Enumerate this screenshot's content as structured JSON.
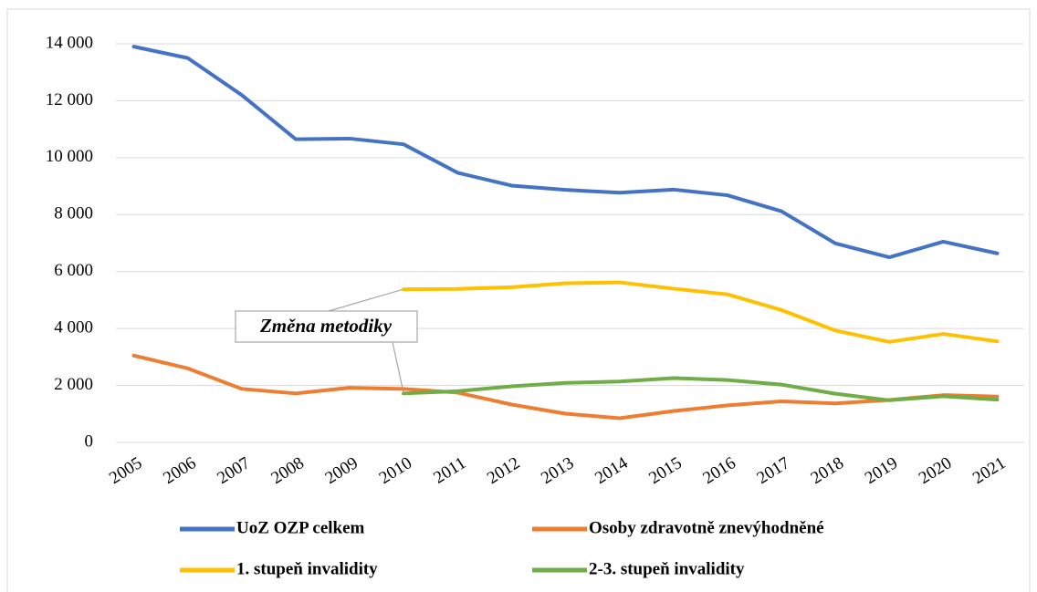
{
  "chart_data": {
    "type": "line",
    "categories": [
      "2005",
      "2006",
      "2007",
      "2008",
      "2009",
      "2010",
      "2011",
      "2012",
      "2013",
      "2014",
      "2015",
      "2016",
      "2017",
      "2018",
      "2019",
      "2020",
      "2021"
    ],
    "series": [
      {
        "name": "UoZ OZP celkem",
        "color": "#4472c4",
        "values": [
          13900,
          13500,
          12200,
          10650,
          10670,
          10470,
          9470,
          9020,
          8870,
          8770,
          8880,
          8680,
          8120,
          6990,
          6500,
          7050,
          6640
        ]
      },
      {
        "name": "Osoby zdravotně znevýhodněné",
        "color": "#ed7d31",
        "values": [
          3050,
          2600,
          1880,
          1720,
          1920,
          1880,
          1750,
          1330,
          1010,
          850,
          1100,
          1300,
          1440,
          1370,
          1490,
          1660,
          1610
        ]
      },
      {
        "name": "1. stupeň invalidity",
        "color": "#ffc000",
        "values": [
          null,
          null,
          null,
          null,
          null,
          5380,
          5390,
          5450,
          5590,
          5620,
          5400,
          5200,
          4650,
          3930,
          3530,
          3810,
          3550
        ]
      },
      {
        "name": "2-3. stupeň invalidity",
        "color": "#70ad47",
        "values": [
          null,
          null,
          null,
          null,
          null,
          1720,
          1800,
          1970,
          2090,
          2140,
          2260,
          2190,
          2030,
          1710,
          1480,
          1620,
          1500
        ]
      }
    ],
    "ylim": [
      0,
      14000
    ],
    "yticks": [
      0,
      {
        "value": 2000,
        "label": "2 000"
      },
      {
        "value": 4000,
        "label": "4 000"
      },
      {
        "value": 6000,
        "label": "6 000"
      },
      {
        "value": 8000,
        "label": "8 000"
      },
      {
        "value": 10000,
        "label": "10 000"
      },
      {
        "value": 12000,
        "label": "12 000"
      },
      {
        "value": 14000,
        "label": "14 000"
      }
    ],
    "grid": true,
    "legend": "bottom",
    "annotation": "Změna metodiky"
  }
}
